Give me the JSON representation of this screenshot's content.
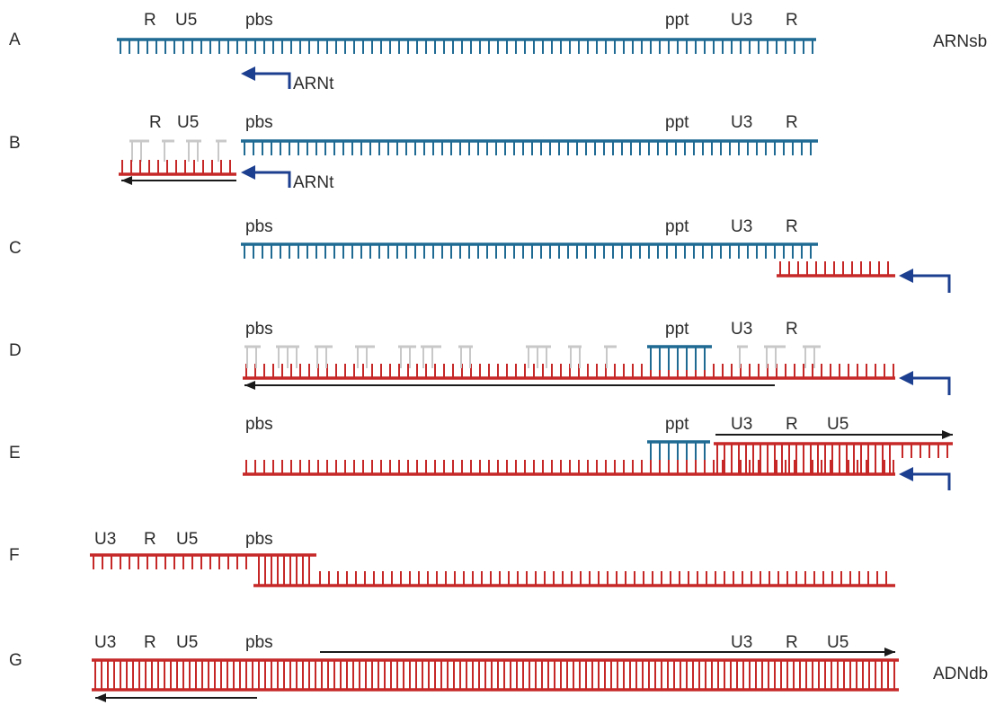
{
  "colors": {
    "rna": "#1f6a93",
    "dna": "#c62828",
    "faded": "#c8c8c8",
    "primer": "#1d3f8f",
    "arrow": "#1a1a1a"
  },
  "rows": {
    "A": {
      "letter": "A",
      "labels": {
        "R": "R",
        "U5": "U5",
        "pbs": "pbs",
        "ppt": "ppt",
        "U3": "U3",
        "R2": "R"
      },
      "primer": "ARNt",
      "end_label": "ARNsb"
    },
    "B": {
      "letter": "B",
      "labels": {
        "R": "R",
        "U5": "U5",
        "pbs": "pbs",
        "ppt": "ppt",
        "U3": "U3",
        "R2": "R"
      },
      "primer": "ARNt"
    },
    "C": {
      "letter": "C",
      "labels": {
        "pbs": "pbs",
        "ppt": "ppt",
        "U3": "U3",
        "R": "R"
      }
    },
    "D": {
      "letter": "D",
      "labels": {
        "pbs": "pbs",
        "ppt": "ppt",
        "U3": "U3",
        "R": "R"
      }
    },
    "E": {
      "letter": "E",
      "labels": {
        "pbs": "pbs",
        "ppt": "ppt",
        "U3": "U3",
        "R": "R",
        "U5": "U5"
      }
    },
    "F": {
      "letter": "F",
      "labels": {
        "U3": "U3",
        "R": "R",
        "U5": "U5",
        "pbs": "pbs"
      }
    },
    "G": {
      "letter": "G",
      "labels": {
        "U3": "U3",
        "R": "R",
        "U5": "U5",
        "pbs": "pbs",
        "U3b": "U3",
        "Rb": "R",
        "U5b": "U5"
      },
      "end_label": "ADNdb"
    }
  }
}
